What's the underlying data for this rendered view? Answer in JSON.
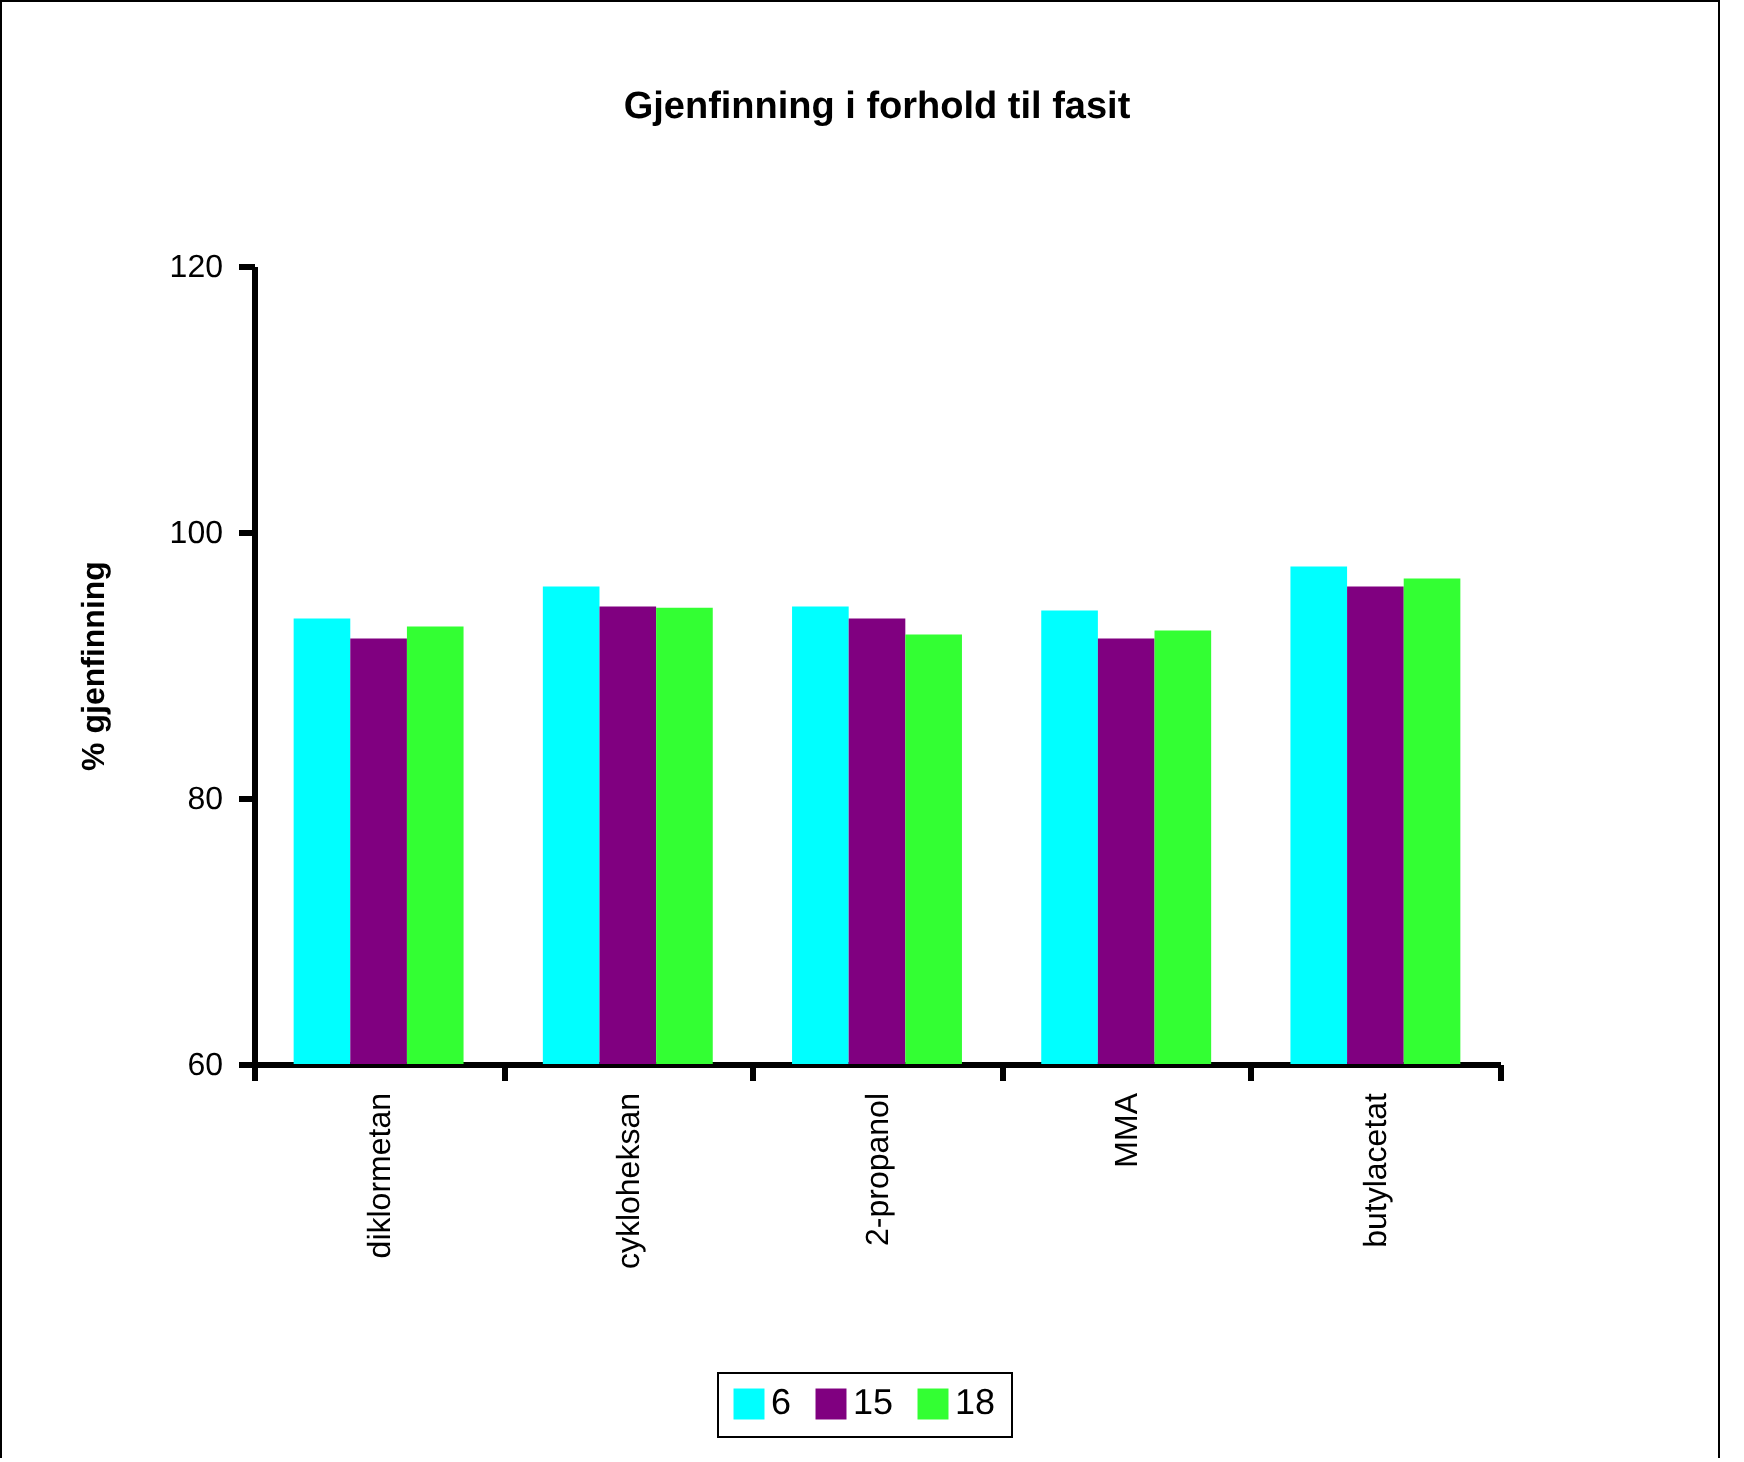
{
  "chart_data": {
    "type": "bar",
    "title": "Gjenfinning i forhold til fasit",
    "ylabel": "% gjenfinning",
    "categories": [
      "diklormetan",
      "cykloheksan",
      "2-propanol",
      "MMA",
      "butylacetat"
    ],
    "series": [
      {
        "name": "6",
        "color": "#00ffff",
        "values": [
          93.5,
          95.9,
          94.4,
          94.1,
          97.4
        ]
      },
      {
        "name": "15",
        "color": "#800080",
        "values": [
          92.0,
          94.4,
          93.5,
          92.0,
          95.9
        ]
      },
      {
        "name": "18",
        "color": "#33ff33",
        "values": [
          92.9,
          94.3,
          92.3,
          92.6,
          96.5
        ]
      }
    ],
    "ylim": [
      60,
      120
    ],
    "yticks": [
      60,
      80,
      100,
      120
    ],
    "legend": "bottom"
  }
}
